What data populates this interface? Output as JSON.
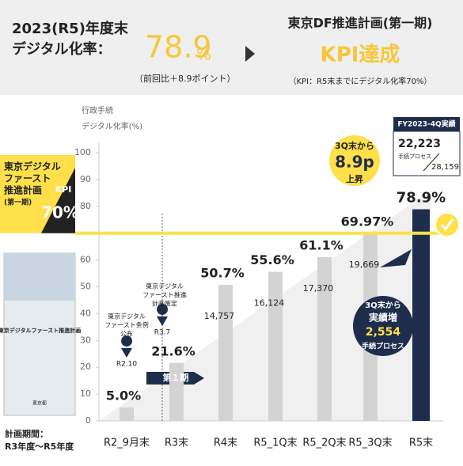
{
  "chart_data": {
    "type": "bar",
    "header": {
      "left_title": [
        "2023(R5)年度末",
        "デジタル化率："
      ],
      "headline": "78.9",
      "headline_unit": "%",
      "headline_note": "（前回比＋8.9ポイント）",
      "right_title": "東京DF推進計画(第一期)",
      "right_headline": "KPI達成",
      "right_note": "（KPI：R5末までにデジタル化率70%）"
    },
    "y_label": [
      "行政手続",
      "デジタル化率(%)"
    ],
    "categories": [
      "R2_9月末",
      "R3末",
      "R4末",
      "R5_1Q末",
      "R5_2Q末",
      "R5_3Q末",
      "R5末"
    ],
    "values": [
      5.0,
      21.6,
      50.7,
      55.6,
      61.1,
      69.97,
      78.9
    ],
    "value_labels": [
      "5.0%",
      "21.6%",
      "50.7%",
      "55.6%",
      "61.1%",
      "69.97%",
      "78.9%"
    ],
    "process_labels": [
      null,
      null,
      "14,757",
      "16,124",
      "17,370",
      "19,669",
      null
    ],
    "color": "#d3d3d3",
    "highlight_color": "#1f2d4d",
    "ylim": [
      0,
      100
    ],
    "yticks": [
      0,
      10,
      20,
      30,
      40,
      50,
      60,
      80,
      90,
      100
    ],
    "kpi": {
      "value": 70,
      "title": [
        "東京デジタル",
        "ファースト",
        "推進計画",
        "(第一期)"
      ],
      "tag": "KPI",
      "label": "70%",
      "color": "#ffe04a"
    },
    "annotations": {
      "ordinance": [
        "東京デジタル",
        "ファースト条例",
        "公布"
      ],
      "ordinance_date": "R2.10",
      "plan": [
        "東京デジタル",
        "ファースト推進",
        "計画策定"
      ],
      "plan_date": "R3.7",
      "period": "第１期",
      "rise": [
        "3Q末から",
        "8.9p",
        "上昇"
      ],
      "increase": [
        "3Q末から",
        "実績増",
        "2,554",
        "手続プロセス"
      ],
      "fy_box": {
        "title": "FY2023-4Q実績",
        "count": "22,223",
        "unit": "手続プロセス",
        "total": "28,159"
      }
    },
    "book": {
      "title": "東京デジタルファースト推進計画",
      "publisher": "東京都"
    },
    "plan_period": [
      "計画期間：",
      "R3年度～R5年度"
    ]
  }
}
